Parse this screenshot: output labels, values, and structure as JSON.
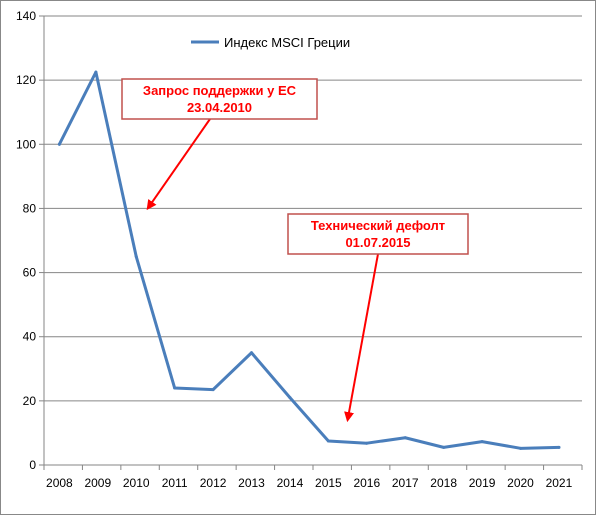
{
  "chart_data": {
    "type": "line",
    "series": [
      {
        "name": "Индекс MSCI Греции",
        "color": "#4a7ebb",
        "x": [
          2008,
          2008.95,
          2010,
          2011,
          2012,
          2013,
          2014,
          2015,
          2016,
          2017,
          2018,
          2019,
          2020,
          2021
        ],
        "values": [
          100,
          122.5,
          65,
          24,
          23.5,
          35,
          21,
          7.5,
          6.8,
          8.5,
          5.5,
          7.3,
          5.2,
          5.5
        ]
      }
    ],
    "categories": [
      "2008",
      "2009",
      "2010",
      "2011",
      "2012",
      "2013",
      "2014",
      "2015",
      "2016",
      "2017",
      "2018",
      "2019",
      "2020",
      "2021"
    ],
    "y_ticks": [
      "0",
      "20",
      "40",
      "60",
      "80",
      "100",
      "120",
      "140"
    ],
    "ylim": [
      0,
      140
    ],
    "xlim": [
      2007.6,
      2021.6
    ],
    "legend_position": "top",
    "grid": true,
    "annotations": [
      {
        "lines": [
          "Запрос поддержки у ЕС",
          "23.04.2010"
        ],
        "target": [
          2010.3,
          80
        ],
        "color": "#ff0000"
      },
      {
        "lines": [
          "Технический дефолт",
          "01.07.2015"
        ],
        "target": [
          2015.5,
          14
        ],
        "color": "#ff0000"
      }
    ]
  }
}
